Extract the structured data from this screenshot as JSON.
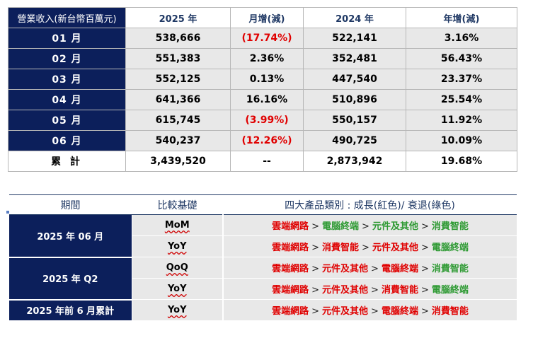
{
  "revenue_table": {
    "headers": [
      "營業收入(新台幣百萬元)",
      "2025 年",
      "月增(減)",
      "2024 年",
      "年增(減)"
    ],
    "rows": [
      {
        "month": "01 月",
        "y2025": "538,666",
        "mom": "(17.74%)",
        "mom_neg": true,
        "y2024": "522,141",
        "yoy": "3.16%"
      },
      {
        "month": "02 月",
        "y2025": "551,383",
        "mom": "2.36%",
        "mom_neg": false,
        "y2024": "352,481",
        "yoy": "56.43%"
      },
      {
        "month": "03 月",
        "y2025": "552,125",
        "mom": "0.13%",
        "mom_neg": false,
        "y2024": "447,540",
        "yoy": "23.37%"
      },
      {
        "month": "04 月",
        "y2025": "641,366",
        "mom": "16.16%",
        "mom_neg": false,
        "y2024": "510,896",
        "yoy": "25.54%"
      },
      {
        "month": "05 月",
        "y2025": "615,745",
        "mom": "(3.99%)",
        "mom_neg": true,
        "y2024": "550,157",
        "yoy": "11.92%"
      },
      {
        "month": "06 月",
        "y2025": "540,237",
        "mom": "(12.26%)",
        "mom_neg": true,
        "y2024": "490,725",
        "yoy": "10.09%"
      }
    ],
    "total": {
      "label": "累 計",
      "y2025": "3,439,520",
      "mom": "--",
      "y2024": "2,873,942",
      "yoy": "19.68%"
    }
  },
  "category_table": {
    "headers": [
      "期間",
      "比較基礎",
      "四大產品類別 : 成長(紅色)/ 衰退(綠色)"
    ],
    "groups": [
      {
        "period": "2025 年 06 月",
        "rows": [
          {
            "basis": "MoM",
            "items": [
              {
                "t": "雲端網路",
                "c": "red"
              },
              {
                "t": "電腦終端",
                "c": "green"
              },
              {
                "t": "元件及其他",
                "c": "green"
              },
              {
                "t": "消費智能",
                "c": "green"
              }
            ]
          },
          {
            "basis": "YoY",
            "items": [
              {
                "t": "雲端網路",
                "c": "red"
              },
              {
                "t": "消費智能",
                "c": "red"
              },
              {
                "t": "元件及其他",
                "c": "red"
              },
              {
                "t": "電腦終端",
                "c": "green"
              }
            ]
          }
        ]
      },
      {
        "period": "2025 年 Q2",
        "rows": [
          {
            "basis": "QoQ",
            "items": [
              {
                "t": "雲端網路",
                "c": "red"
              },
              {
                "t": "元件及其他",
                "c": "red"
              },
              {
                "t": "電腦終端",
                "c": "red"
              },
              {
                "t": "消費智能",
                "c": "green"
              }
            ]
          },
          {
            "basis": "YoY",
            "items": [
              {
                "t": "雲端網路",
                "c": "red"
              },
              {
                "t": "元件及其他",
                "c": "red"
              },
              {
                "t": "消費智能",
                "c": "red"
              },
              {
                "t": "電腦終端",
                "c": "green"
              }
            ]
          }
        ]
      },
      {
        "period": "2025 年前 6 月累計",
        "rows": [
          {
            "basis": "YoY",
            "items": [
              {
                "t": "雲端網路",
                "c": "red"
              },
              {
                "t": "元件及其他",
                "c": "red"
              },
              {
                "t": "電腦終端",
                "c": "red"
              },
              {
                "t": "消費智能",
                "c": "red"
              }
            ]
          }
        ]
      }
    ],
    "separator": ">"
  },
  "colors": {
    "navy": "#0c1f5b",
    "growth": "#e00000",
    "decline": "#2e9a33",
    "cell_gray": "#e8e8e8"
  }
}
